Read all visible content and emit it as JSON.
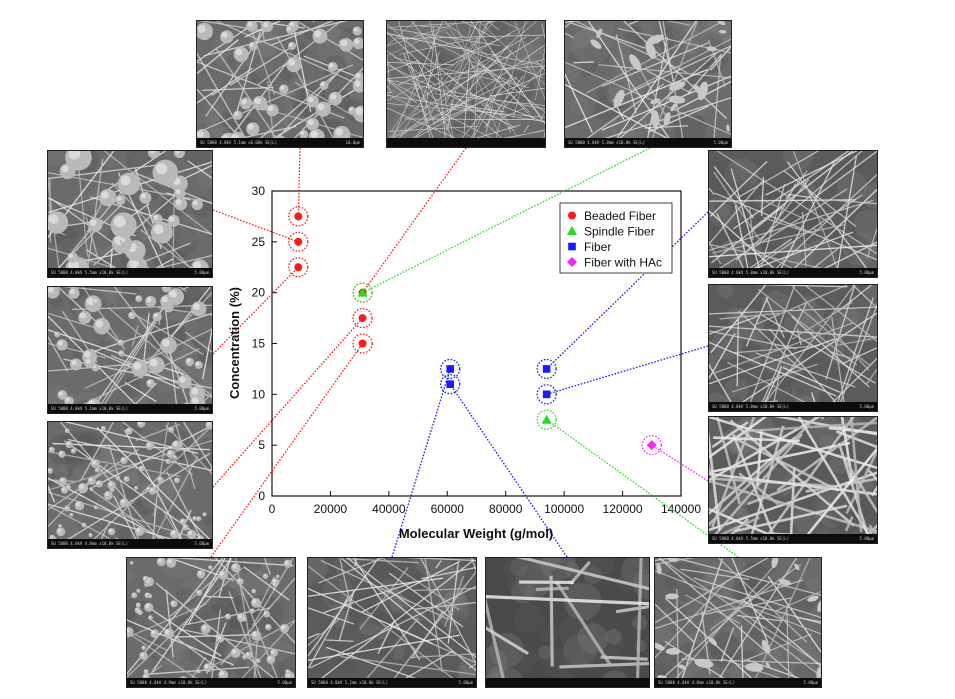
{
  "chart_data": {
    "type": "scatter",
    "xlabel": "Molecular Weight (g/mol)",
    "ylabel": "Concentration (%)",
    "xlim": [
      0,
      140000
    ],
    "ylim": [
      0,
      30
    ],
    "x_ticks": [
      "0",
      "20000",
      "40000",
      "60000",
      "80000",
      "100000",
      "120000",
      "140000"
    ],
    "y_ticks": [
      "0",
      "5",
      "10",
      "15",
      "20",
      "25",
      "30"
    ],
    "legend_position": "top-right",
    "series": [
      {
        "name": "Beaded Fiber",
        "color": "#ff1a1a",
        "marker": "circle",
        "points": [
          {
            "x": 9000,
            "y": 27.5
          },
          {
            "x": 9000,
            "y": 25
          },
          {
            "x": 9000,
            "y": 22.5
          },
          {
            "x": 31000,
            "y": 20
          },
          {
            "x": 31000,
            "y": 17.5
          },
          {
            "x": 31000,
            "y": 15
          }
        ]
      },
      {
        "name": "Spindle Fiber",
        "color": "#22dd22",
        "marker": "triangle",
        "points": [
          {
            "x": 31000,
            "y": 20
          },
          {
            "x": 94000,
            "y": 7.5
          }
        ]
      },
      {
        "name": "Fiber",
        "color": "#1a1aff",
        "marker": "square",
        "points": [
          {
            "x": 61000,
            "y": 12.5
          },
          {
            "x": 61000,
            "y": 11
          },
          {
            "x": 94000,
            "y": 12.5
          },
          {
            "x": 94000,
            "y": 10
          }
        ]
      },
      {
        "name": "Fiber with HAc",
        "color": "#ff22ff",
        "marker": "diamond",
        "points": [
          {
            "x": 130000,
            "y": 5
          }
        ]
      }
    ]
  },
  "micrographs": [
    {
      "id": "top-1",
      "caption": "SU 5000 4.0kV 5.1mm x6.00k SE(L)",
      "scale": "10.0μm",
      "style": "beaded",
      "series": "Beaded Fiber",
      "point": 0
    },
    {
      "id": "top-2",
      "caption": "",
      "scale": "",
      "style": "dense",
      "series": "Beaded Fiber",
      "point": 3
    },
    {
      "id": "top-3",
      "caption": "SU 5000 4.0kV 5.0mm x10.0k SE(L)",
      "scale": "5.00μm",
      "style": "spindle",
      "series": "Spindle Fiber",
      "point": 0
    },
    {
      "id": "left-1",
      "caption": "SU 5000 4.0kV 5.5mm x10.0k SE(L)",
      "scale": "5.00μm",
      "style": "beaded-large",
      "series": "Beaded Fiber",
      "point": 1
    },
    {
      "id": "left-2",
      "caption": "SU 5000 4.0kV 5.1mm x10.0k SE(L)",
      "scale": "5.00μm",
      "style": "beaded",
      "series": "Beaded Fiber",
      "point": 2
    },
    {
      "id": "left-3",
      "caption": "SU 5000 4.0kV 4.8mm x10.0k SE(L)",
      "scale": "5.00μm",
      "style": "beaded-small",
      "series": "Beaded Fiber",
      "point": 4
    },
    {
      "id": "right-1",
      "caption": "SU 5000 4.0kV 5.0mm x10.0k SE(L)",
      "scale": "5.00μm",
      "style": "fiber",
      "series": "Fiber",
      "point": 2
    },
    {
      "id": "right-2",
      "caption": "SU 5000 4.0kV 5.0mm x10.0k SE(L)",
      "scale": "5.00μm",
      "style": "fiber",
      "series": "Fiber",
      "point": 3
    },
    {
      "id": "right-3",
      "caption": "SU 5000 4.0kV 5.5mm x10.0k SE(L)",
      "scale": "5.00μm",
      "style": "fiber-thick",
      "series": "Fiber with HAc",
      "point": 0
    },
    {
      "id": "bottom-1",
      "caption": "SU 5000 4.0kV 4.9mm x10.0k SE(L)",
      "scale": "5.00μm",
      "style": "beaded-small",
      "series": "Beaded Fiber",
      "point": 5
    },
    {
      "id": "bottom-2",
      "caption": "SU 5000 4.0kV 5.2mm x10.0k SE(L)",
      "scale": "5.00μm",
      "style": "fiber",
      "series": "Fiber",
      "point": 0
    },
    {
      "id": "bottom-3",
      "caption": "",
      "scale": "",
      "style": "fiber-sparse",
      "series": "Fiber",
      "point": 1
    },
    {
      "id": "bottom-4",
      "caption": "SU 5000 4.0kV 4.8mm x10.0k SE(L)",
      "scale": "5.00μm",
      "style": "spindle",
      "series": "Spindle Fiber",
      "point": 1
    }
  ]
}
